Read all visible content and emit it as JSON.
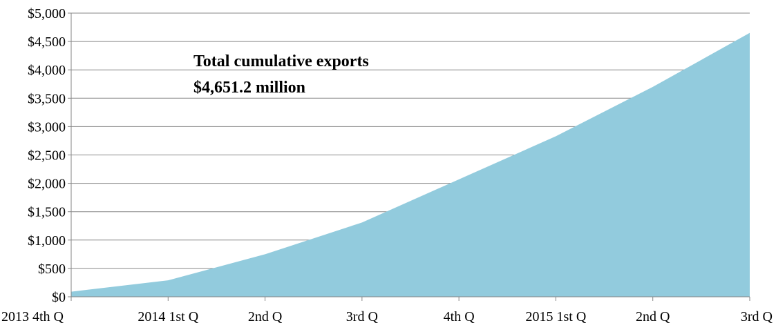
{
  "chart_data": {
    "type": "area",
    "categories": [
      "2013 4th Q",
      "2014 1st Q",
      "2nd Q",
      "3rd Q",
      "4th Q",
      "2015 1st Q",
      "2nd Q",
      "3rd Q"
    ],
    "series": [
      {
        "values": [
          90,
          290,
          750,
          1310,
          2070,
          2830,
          3700,
          4651.2
        ]
      }
    ],
    "title": "",
    "xlabel": "",
    "ylabel": "",
    "ylim": [
      0,
      5000
    ],
    "y_ticks": [
      "$0",
      "$500",
      "$1,000",
      "$1,500",
      "$2,000",
      "$2,500",
      "$3,000",
      "$3,500",
      "$4,000",
      "$4,500",
      "$5,000"
    ],
    "y_tick_values": [
      0,
      500,
      1000,
      1500,
      2000,
      2500,
      3000,
      3500,
      4000,
      4500,
      5000
    ],
    "annotations": [
      "Total cumulative exports",
      "$4,651.2 million"
    ],
    "grid": true,
    "legend": "none",
    "colors": {
      "area": "#92CBDD",
      "grid": "#868686",
      "axis": "#868686"
    }
  }
}
